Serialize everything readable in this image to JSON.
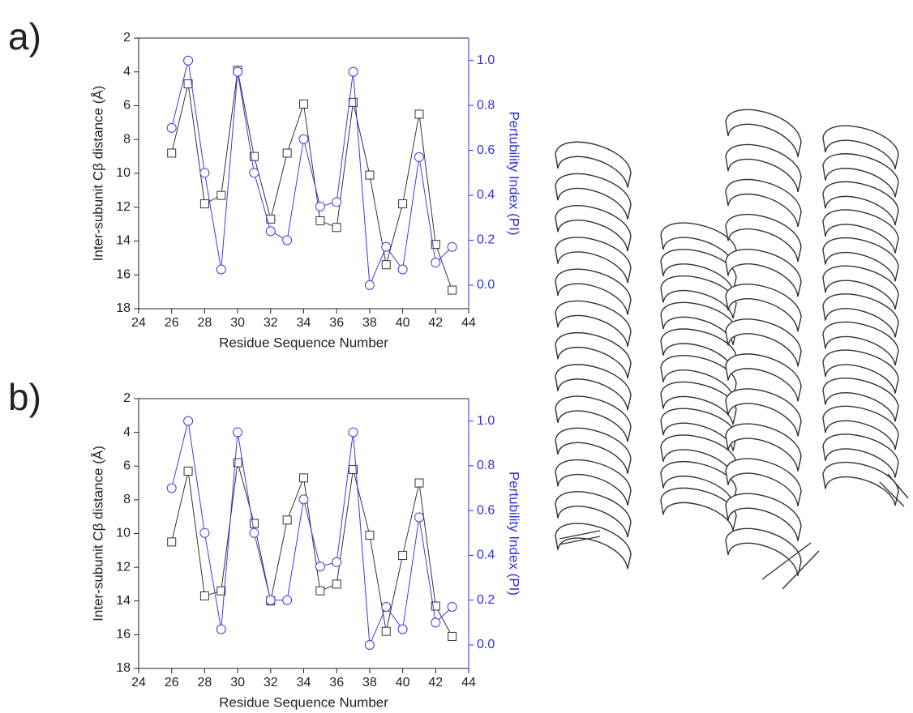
{
  "chart_data": [
    {
      "type": "line",
      "panel_label": "a)",
      "x_label": "Residue Sequence Number",
      "y_label": "Inter-subunit Cβ distance (Å)",
      "y2_label": "Pertubility Index (PI)",
      "x": [
        26,
        27,
        28,
        29,
        30,
        31,
        32,
        33,
        34,
        35,
        36,
        37,
        38,
        39,
        40,
        41,
        42,
        43
      ],
      "xlim": [
        24,
        44
      ],
      "xticks": [
        24,
        26,
        28,
        30,
        32,
        34,
        36,
        38,
        40,
        42,
        44
      ],
      "ylim": [
        18,
        2
      ],
      "yticks": [
        2,
        4,
        6,
        8,
        10,
        12,
        14,
        16,
        18
      ],
      "y2lim": [
        -0.105,
        1.1
      ],
      "y2ticks": [
        {
          "value": 0,
          "label": "0.0"
        },
        0.2,
        0.4,
        0.6,
        0.8,
        {
          "value": 1,
          "label": "1.0"
        }
      ],
      "series": [
        {
          "color": "#333333",
          "marker": "square",
          "values": [
            8.8,
            4.7,
            11.8,
            11.3,
            3.9,
            9.0,
            12.7,
            8.8,
            5.9,
            12.8,
            13.2,
            5.8,
            10.1,
            15.4,
            11.8,
            6.5,
            14.2,
            16.9
          ]
        },
        {
          "color": "#3a3ae8",
          "marker": "circle",
          "axis": "y2",
          "values": [
            0.7,
            1.0,
            0.5,
            0.07,
            0.95,
            0.5,
            0.24,
            0.2,
            0.65,
            0.35,
            0.37,
            0.95,
            0.0,
            0.17,
            0.07,
            0.57,
            0.1,
            0.17
          ]
        }
      ]
    },
    {
      "type": "line",
      "panel_label": "b)",
      "x_label": "Residue Sequence Number",
      "y_label": "Inter-subunit Cβ distance (Å)",
      "y2_label": "Pertubility Index (PI)",
      "x": [
        26,
        27,
        28,
        29,
        30,
        31,
        32,
        33,
        34,
        35,
        36,
        37,
        38,
        39,
        40,
        41,
        42,
        43
      ],
      "xlim": [
        24,
        44
      ],
      "xticks": [
        24,
        26,
        28,
        30,
        32,
        34,
        36,
        38,
        40,
        42,
        44
      ],
      "ylim": [
        18,
        2
      ],
      "yticks": [
        2,
        4,
        6,
        8,
        10,
        12,
        14,
        16,
        18
      ],
      "y2lim": [
        -0.105,
        1.1
      ],
      "y2ticks": [
        {
          "value": 0,
          "label": "0.0"
        },
        0.2,
        0.4,
        0.6,
        0.8,
        {
          "value": 1,
          "label": "1.0"
        }
      ],
      "series": [
        {
          "color": "#333333",
          "marker": "square",
          "values": [
            10.5,
            6.3,
            13.7,
            13.4,
            5.8,
            9.4,
            14.0,
            9.2,
            6.7,
            13.4,
            13.0,
            6.2,
            10.1,
            15.8,
            11.3,
            7.0,
            14.3,
            16.1
          ]
        },
        {
          "color": "#3a3ae8",
          "marker": "circle",
          "axis": "y2",
          "values": [
            0.7,
            1.0,
            0.5,
            0.07,
            0.95,
            0.5,
            0.2,
            0.2,
            0.65,
            0.35,
            0.37,
            0.95,
            0.0,
            0.17,
            0.07,
            0.57,
            0.1,
            0.17
          ]
        }
      ]
    }
  ]
}
